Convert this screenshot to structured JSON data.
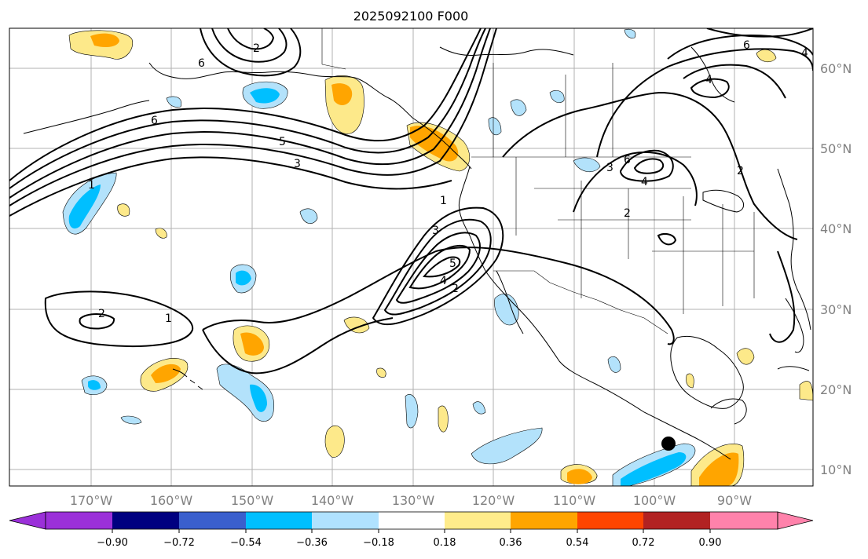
{
  "map": {
    "title": "2025092100 F000",
    "lon_labels": [
      "170°W",
      "160°W",
      "150°W",
      "140°W",
      "130°W",
      "120°W",
      "110°W",
      "100°W",
      "90°W"
    ],
    "lat_labels": [
      "60°N",
      "50°N",
      "40°N",
      "30°N",
      "20°N",
      "10°N"
    ],
    "contour_labels": [
      "2",
      "6",
      "6",
      "5",
      "3",
      "1",
      "1",
      "3",
      "5",
      "4",
      "2",
      "2",
      "1",
      "3",
      "4",
      "6",
      "2",
      "4",
      "2",
      "4",
      "6"
    ],
    "marker": "storm-center",
    "colors": {
      "land_outline": "#000000",
      "grid": "#b0b0b0",
      "light_blue": "#b3e2fb",
      "cyan": "#00bfff",
      "light_yellow": "#fde98a",
      "orange": "#ffa500",
      "dark_orange": "#ff4500"
    }
  },
  "colorbar": {
    "tick_labels": [
      "−0.90",
      "−0.72",
      "−0.54",
      "−0.36",
      "−0.18",
      "0.18",
      "0.36",
      "0.54",
      "0.72",
      "0.90"
    ],
    "colors": [
      "#9b30d9",
      "#000080",
      "#3a5fcd",
      "#00bfff",
      "#b0e2ff",
      "#ffffff",
      "#ffec8b",
      "#ffa500",
      "#ff4500",
      "#b22222",
      "#ff82ab"
    ]
  }
}
